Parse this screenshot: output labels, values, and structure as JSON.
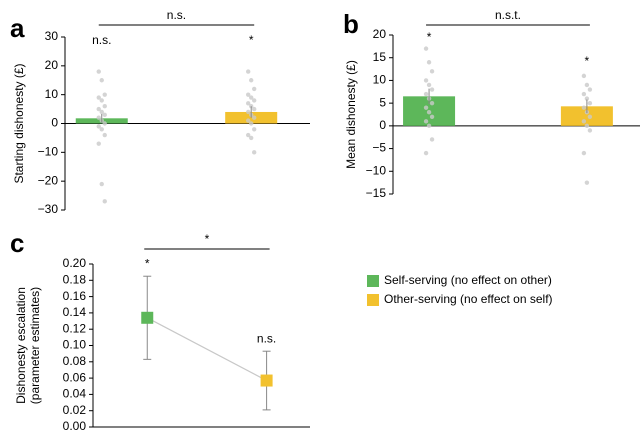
{
  "chart_data": [
    {
      "type": "bar",
      "panel_label": "a",
      "ylabel": [
        "Starting dishonesty (£)"
      ],
      "categories": [
        null,
        null
      ],
      "values": [
        1.8,
        4
      ],
      "errors": [
        1.5,
        2
      ],
      "colors": [
        "#5db75a",
        "#f2c12e"
      ],
      "points": [
        [
          18,
          15,
          10,
          9,
          8,
          6,
          5,
          4,
          3,
          2,
          1,
          0,
          -1,
          -2,
          -4,
          -7,
          -21,
          -27
        ],
        [
          18,
          15,
          12,
          10,
          9,
          8,
          7,
          6,
          5,
          4,
          3,
          2,
          1,
          0,
          -2,
          -4,
          -5,
          -10
        ]
      ],
      "ylim": [
        -30,
        30
      ],
      "yticks": [
        {
          "value": -30,
          "label": "−30"
        },
        {
          "value": -20,
          "label": "−20"
        },
        {
          "value": -10,
          "label": "−10"
        },
        0,
        10,
        20,
        30
      ],
      "bracket_label": "n.s.",
      "point_labels": [
        "n.s.",
        "*"
      ]
    },
    {
      "type": "bar",
      "panel_label": "b",
      "ylabel": [
        "Mean dishonesty (£)"
      ],
      "categories": [
        null,
        null
      ],
      "values": [
        6.5,
        4.3
      ],
      "errors": [
        1.7,
        1.5
      ],
      "colors": [
        "#5db75a",
        "#f2c12e"
      ],
      "points": [
        [
          17,
          14,
          12,
          10,
          9,
          8,
          7,
          6,
          5,
          4,
          3,
          2,
          1,
          0,
          -3,
          -6
        ],
        [
          11,
          9,
          8,
          7,
          6,
          5,
          4,
          3,
          2,
          1,
          0,
          -1,
          -6,
          -12.5
        ]
      ],
      "ylim": [
        -15,
        20
      ],
      "yticks": [
        {
          "value": -15,
          "label": "−15"
        },
        {
          "value": -10,
          "label": "−10"
        },
        {
          "value": -5,
          "label": "−5"
        },
        0,
        5,
        10,
        15,
        20
      ],
      "bracket_label": "n.s.t.",
      "point_labels": [
        "*",
        "*"
      ]
    },
    {
      "type": "line",
      "panel_label": "c",
      "ylabel": [
        "Dishonesty escalation",
        "(parameter estimates)"
      ],
      "categories": [
        null,
        null
      ],
      "values": [
        0.134,
        0.057
      ],
      "errors": [
        0.051,
        0.036
      ],
      "colors": [
        "#5db75a",
        "#f2c12e"
      ],
      "line_color": "#c8c8c8",
      "ylim": [
        0,
        0.2
      ],
      "yticks": [
        {
          "value": 0,
          "label": "0.00"
        },
        {
          "value": 0.02,
          "label": "0.02"
        },
        {
          "value": 0.04,
          "label": "0.04"
        },
        {
          "value": 0.06,
          "label": "0.06"
        },
        {
          "value": 0.08,
          "label": "0.08"
        },
        {
          "value": 0.1,
          "label": "0.10"
        },
        {
          "value": 0.12,
          "label": "0.12"
        },
        {
          "value": 0.14,
          "label": "0.14"
        },
        {
          "value": 0.16,
          "label": "0.16"
        },
        {
          "value": 0.18,
          "label": "0.18"
        },
        {
          "value": 0.2,
          "label": "0.20"
        }
      ],
      "bracket_label": "*",
      "point_labels": [
        "*",
        "n.s."
      ],
      "legend": [
        {
          "name": "Self-serving (no effect on other)",
          "color": "#5db75a"
        },
        {
          "name": "Other-serving (no effect on self)",
          "color": "#f2c12e"
        }
      ]
    }
  ]
}
